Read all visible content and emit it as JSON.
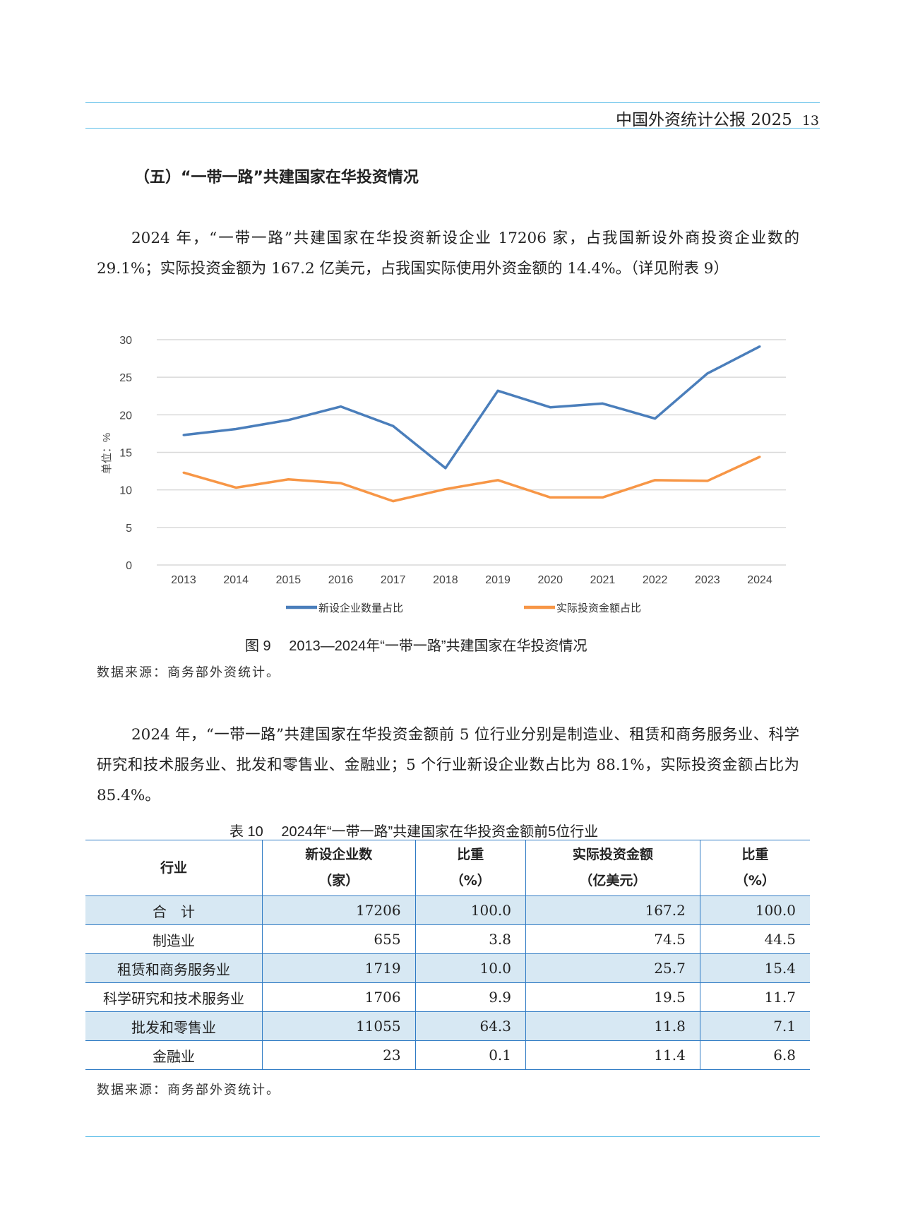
{
  "header": {
    "title": "中国外资统计公报 2025",
    "page": "13"
  },
  "section_title": "（五）“一带一路”共建国家在华投资情况",
  "paragraph1": "2024 年，“一带一路”共建国家在华投资新设企业 17206 家，占我国新设外商投资企业数的 29.1%；实际投资金额为 167.2 亿美元，占我国实际使用外资金额的 14.4%。（详见附表 9）",
  "chart_data": {
    "type": "line",
    "title": "",
    "ylabel": "单位：%",
    "xlabel": "",
    "ylim": [
      0,
      30
    ],
    "yticks": [
      "0",
      "5",
      "10",
      "15",
      "20",
      "25",
      "30"
    ],
    "grid": true,
    "legend": "bottom",
    "categories": [
      "2013",
      "2014",
      "2015",
      "2016",
      "2017",
      "2018",
      "2019",
      "2020",
      "2021",
      "2022",
      "2023",
      "2024"
    ],
    "series": [
      {
        "name": "新设企业数量占比",
        "color": "#4a7ebb",
        "values": [
          17.3,
          18.1,
          19.3,
          21.1,
          18.5,
          12.9,
          23.2,
          21.0,
          21.5,
          19.5,
          25.5,
          29.1
        ]
      },
      {
        "name": "实际投资金额占比",
        "color": "#f79646",
        "values": [
          12.3,
          10.3,
          11.4,
          10.9,
          8.5,
          10.1,
          11.3,
          9.0,
          9.0,
          11.3,
          11.2,
          14.4
        ]
      }
    ]
  },
  "figure_caption": "图 9　 2013—2024年“一带一路”共建国家在华投资情况",
  "source1": "数据来源：商务部外资统计。",
  "paragraph2": "2024 年，“一带一路”共建国家在华投资金额前 5 位行业分别是制造业、租赁和商务服务业、科学研究和技术服务业、批发和零售业、金融业；5 个行业新设企业数占比为 88.1%，实际投资金额占比为 85.4%。",
  "table": {
    "title": "表 10　 2024年“一带一路”共建国家在华投资金额前5位行业",
    "headers": [
      [
        "行业",
        ""
      ],
      [
        "新设企业数",
        "（家）"
      ],
      [
        "比重",
        "（%）"
      ],
      [
        "实际投资金额",
        "（亿美元）"
      ],
      [
        "比重",
        "（%）"
      ]
    ],
    "rows": [
      [
        "合　计",
        "17206",
        "100.0",
        "167.2",
        "100.0"
      ],
      [
        "制造业",
        "655",
        "3.8",
        "74.5",
        "44.5"
      ],
      [
        "租赁和商务服务业",
        "1719",
        "10.0",
        "25.7",
        "15.4"
      ],
      [
        "科学研究和技术服务业",
        "1706",
        "9.9",
        "19.5",
        "11.7"
      ],
      [
        "批发和零售业",
        "11055",
        "64.3",
        "11.8",
        "7.1"
      ],
      [
        "金融业",
        "23",
        "0.1",
        "11.4",
        "6.8"
      ]
    ]
  },
  "source2": "数据来源：商务部外资统计。"
}
